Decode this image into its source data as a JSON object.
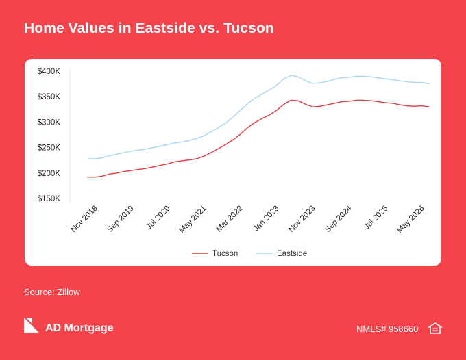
{
  "title": "Home Values in Eastside vs. Tucson",
  "source": "Source: Zillow",
  "brand": {
    "name": "AD Mortgage",
    "nmls": "NMLS# 958660"
  },
  "icons": {
    "brand_logo": "ad-mortgage-logo-icon",
    "equal_housing": "equal-housing-icon"
  },
  "colors": {
    "background": "#F4434A",
    "tucson": "#E8383F",
    "eastside": "#A9D5F0"
  },
  "chart_data": {
    "type": "line",
    "title": "Home Values in Eastside vs. Tucson",
    "xlabel": "",
    "ylabel": "",
    "ylim": [
      150000,
      400000
    ],
    "yticks": [
      {
        "value": 400000,
        "label": "$400K"
      },
      {
        "value": 350000,
        "label": "$350K"
      },
      {
        "value": 300000,
        "label": "$300K"
      },
      {
        "value": 250000,
        "label": "$250K"
      },
      {
        "value": 200000,
        "label": "$200K"
      },
      {
        "value": 150000,
        "label": "$150K"
      }
    ],
    "xticks": [
      "Nov 2018",
      "Sep 2019",
      "Jul 2020",
      "May 2021",
      "Mar 2022",
      "Jan 2023",
      "Nov 2023",
      "Sep 2024",
      "Jul 2025",
      "May 2026"
    ],
    "x": [
      "2018-09",
      "2018-11",
      "2019-01",
      "2019-03",
      "2019-05",
      "2019-07",
      "2019-09",
      "2019-11",
      "2020-01",
      "2020-03",
      "2020-05",
      "2020-07",
      "2020-09",
      "2020-11",
      "2021-01",
      "2021-03",
      "2021-05",
      "2021-07",
      "2021-09",
      "2021-11",
      "2022-01",
      "2022-03",
      "2022-05",
      "2022-07",
      "2022-09",
      "2022-11",
      "2023-01",
      "2023-03",
      "2023-05",
      "2023-07",
      "2023-09",
      "2023-11",
      "2024-01",
      "2024-03",
      "2024-05",
      "2024-07",
      "2024-09",
      "2024-11",
      "2025-01",
      "2025-03",
      "2025-05",
      "2025-07",
      "2025-09",
      "2025-11",
      "2026-01",
      "2026-03",
      "2026-05",
      "2026-07"
    ],
    "legend": "bottom",
    "grid": false,
    "series": [
      {
        "name": "Tucson",
        "color": "#E8383F",
        "values": [
          192000,
          192000,
          194000,
          198000,
          200000,
          203000,
          205000,
          207000,
          209000,
          212000,
          215000,
          218000,
          222000,
          224000,
          226000,
          228000,
          233000,
          240000,
          248000,
          256000,
          265000,
          276000,
          289000,
          299000,
          307000,
          314000,
          323000,
          335000,
          343000,
          342000,
          335000,
          330000,
          331000,
          334000,
          337000,
          340000,
          341000,
          343000,
          343000,
          342000,
          340000,
          338000,
          337000,
          334000,
          332000,
          331000,
          332000,
          330000
        ]
      },
      {
        "name": "Eastside",
        "color": "#A9D5F0",
        "values": [
          228000,
          228000,
          230000,
          234000,
          237000,
          240000,
          243000,
          245000,
          247000,
          250000,
          253000,
          256000,
          259000,
          261000,
          264000,
          268000,
          273000,
          281000,
          289000,
          298000,
          310000,
          323000,
          336000,
          347000,
          355000,
          363000,
          372000,
          385000,
          392000,
          389000,
          381000,
          376000,
          377000,
          380000,
          384000,
          387000,
          388000,
          390000,
          390000,
          389000,
          387000,
          385000,
          383000,
          381000,
          379000,
          378000,
          378000,
          375000
        ]
      }
    ]
  }
}
